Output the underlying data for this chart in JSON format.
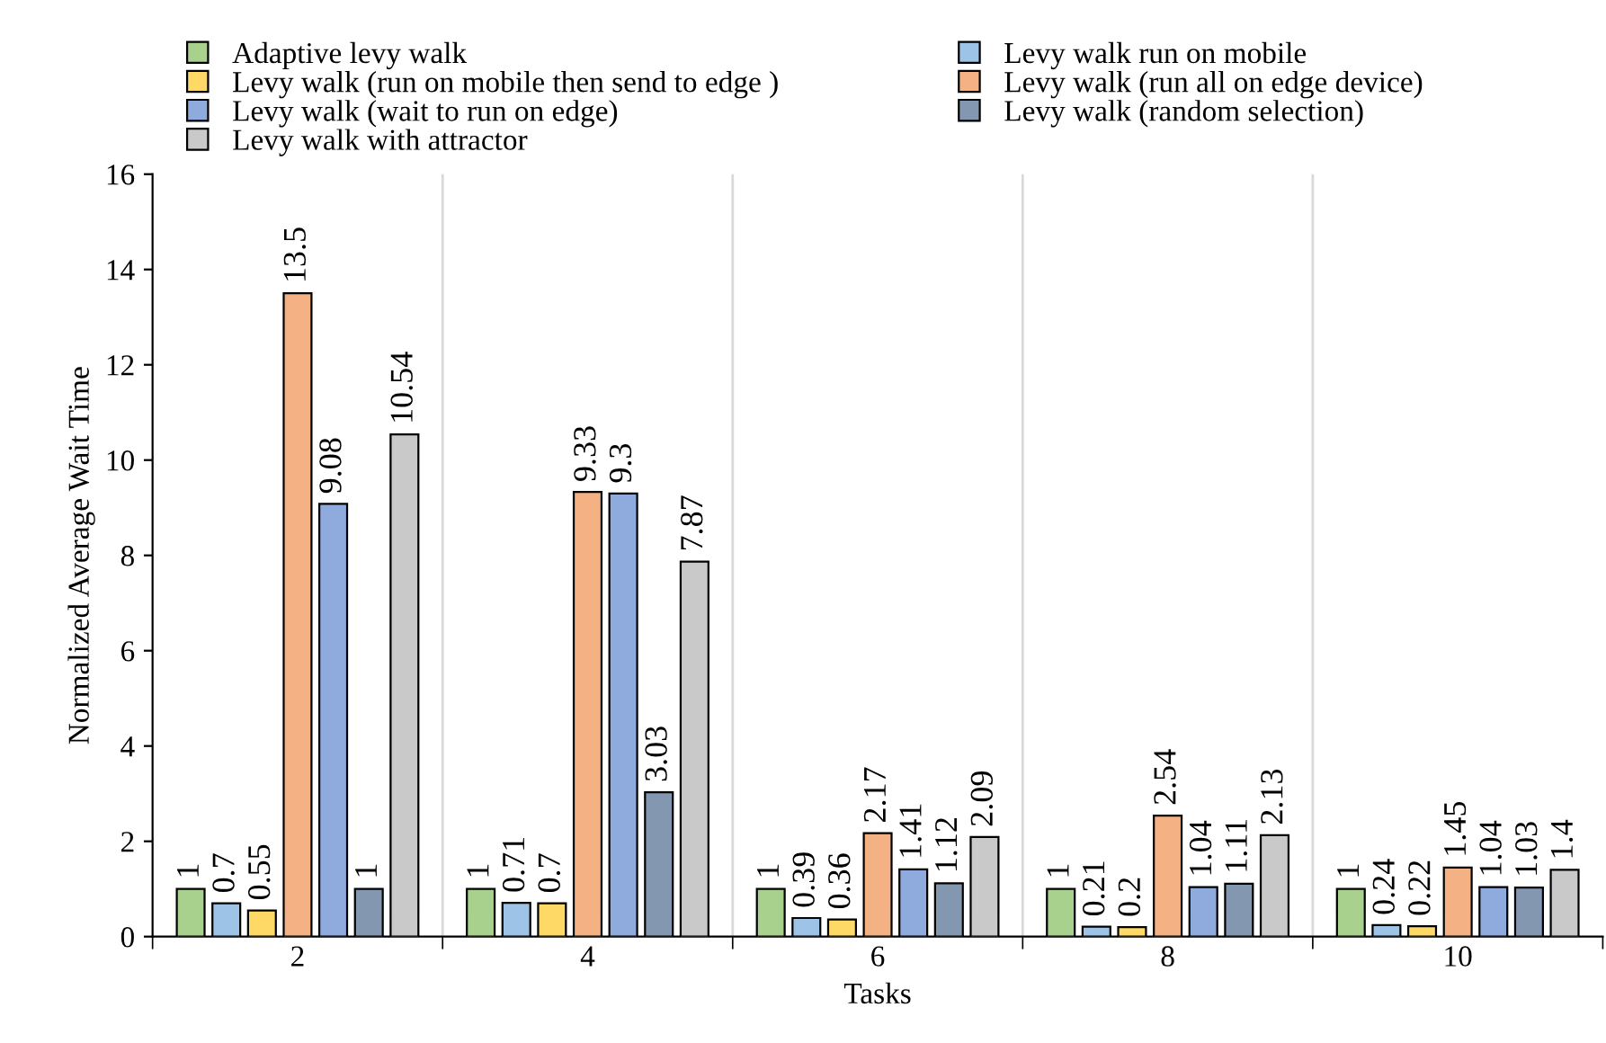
{
  "chart_data": {
    "type": "bar",
    "xlabel": "Tasks",
    "ylabel": "Normalized Average Wait Time",
    "categories": [
      "2",
      "4",
      "6",
      "8",
      "10"
    ],
    "series": [
      {
        "name": "Adaptive levy walk",
        "color": "#a9d18e",
        "values": [
          1,
          1,
          1,
          1,
          1
        ]
      },
      {
        "name": "Levy walk run on mobile",
        "color": "#9dc3e6",
        "values": [
          0.7,
          0.71,
          0.39,
          0.21,
          0.24
        ]
      },
      {
        "name": "Levy walk (run on mobile then send to edge )",
        "color": "#ffd966",
        "values": [
          0.55,
          0.7,
          0.36,
          0.2,
          0.22
        ]
      },
      {
        "name": "Levy walk (run all on edge device)",
        "color": "#f4b183",
        "values": [
          13.5,
          9.33,
          2.17,
          2.54,
          1.45
        ]
      },
      {
        "name": "Levy walk (wait to run on edge)",
        "color": "#8faadc",
        "values": [
          9.08,
          9.3,
          1.41,
          1.04,
          1.04
        ]
      },
      {
        "name": "Levy walk (random selection)",
        "color": "#8497b0",
        "values": [
          1,
          3.03,
          1.12,
          1.11,
          1.03
        ]
      },
      {
        "name": "Levy walk with attractor",
        "color": "#c9c9c9",
        "values": [
          10.54,
          7.87,
          2.09,
          2.13,
          1.4
        ]
      }
    ],
    "ylim": [
      0,
      16
    ],
    "yticks": [
      0,
      2,
      4,
      6,
      8,
      10,
      12,
      14,
      16
    ],
    "grid": "x",
    "legend": "top",
    "data_labels": true
  }
}
